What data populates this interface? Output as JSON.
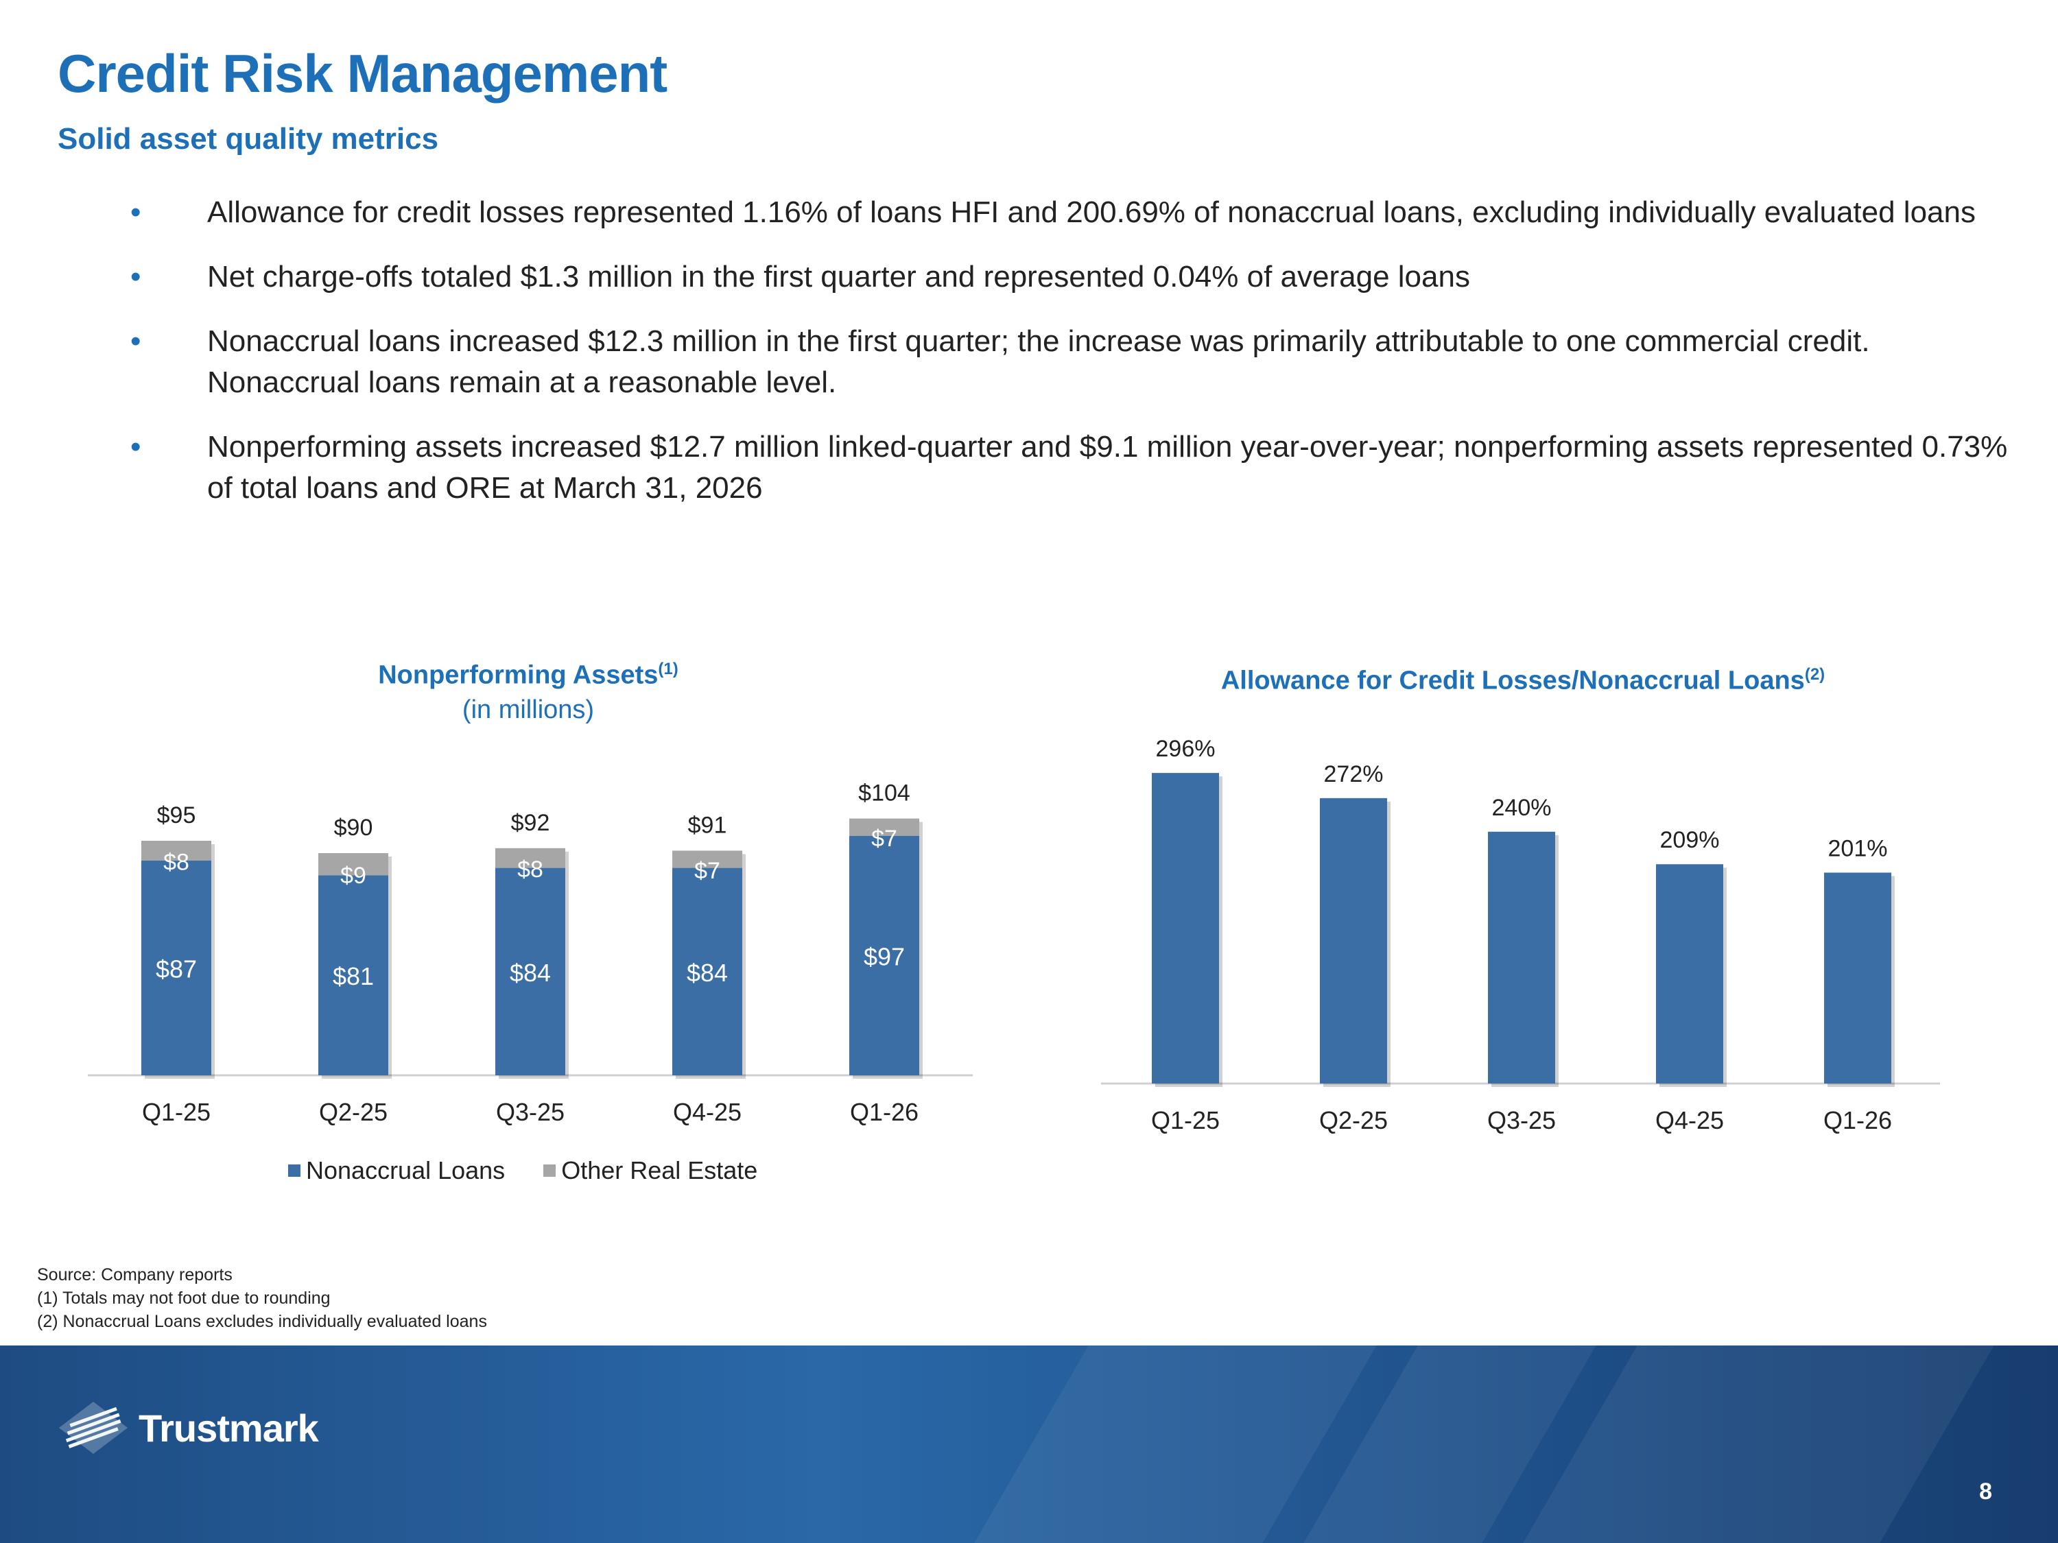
{
  "header": {
    "title": "Credit Risk Management",
    "subtitle": "Solid asset quality metrics"
  },
  "bullets": [
    "Allowance for credit losses represented 1.16% of loans HFI and 200.69% of nonaccrual loans, excluding individually evaluated loans",
    "Net charge-offs totaled $1.3 million in the first quarter and represented 0.04% of average loans",
    "Nonaccrual loans increased $12.3 million in the first quarter; the increase was primarily attributable to one commercial credit.  Nonaccrual loans remain at a reasonable level.",
    "Nonperforming assets increased $12.7 million linked-quarter and $9.1 million year-over-year; nonperforming assets represented 0.73% of total loans and ORE at March 31, 2026"
  ],
  "colors": {
    "accent": "#1d6fb8",
    "bar_blue": "#3a6ea5",
    "bar_gray": "#a6a6a6"
  },
  "chart_data": [
    {
      "type": "bar",
      "stacked": true,
      "title": "Nonperforming Assets",
      "title_sup": "(1)",
      "subtitle": "(in millions)",
      "categories": [
        "Q1-25",
        "Q2-25",
        "Q3-25",
        "Q4-25",
        "Q1-26"
      ],
      "series": [
        {
          "name": "Nonaccrual Loans",
          "values": [
            87,
            81,
            84,
            84,
            97
          ],
          "labels": [
            "$87",
            "$81",
            "$84",
            "$84",
            "$97"
          ]
        },
        {
          "name": "Other Real Estate",
          "values": [
            8,
            9,
            8,
            7,
            7
          ],
          "labels": [
            "$8",
            "$9",
            "$8",
            "$7",
            "$7"
          ]
        }
      ],
      "totals": [
        95,
        90,
        92,
        91,
        104
      ],
      "total_labels": [
        "$95",
        "$90",
        "$92",
        "$91",
        "$104"
      ],
      "legend": [
        "Nonaccrual Loans",
        "Other Real Estate"
      ]
    },
    {
      "type": "bar",
      "title": "Allowance for Credit Losses/Nonaccrual Loans",
      "title_sup": "(2)",
      "categories": [
        "Q1-25",
        "Q2-25",
        "Q3-25",
        "Q4-25",
        "Q1-26"
      ],
      "values": [
        296,
        272,
        240,
        209,
        201
      ],
      "labels": [
        "296%",
        "272%",
        "240%",
        "209%",
        "201%"
      ]
    }
  ],
  "footnotes": [
    "Source: Company reports",
    "(1) Totals may not foot due to rounding",
    "(2) Nonaccrual Loans excludes individually evaluated loans"
  ],
  "footer": {
    "logo_text": "Trustmark",
    "page_number": "8"
  }
}
